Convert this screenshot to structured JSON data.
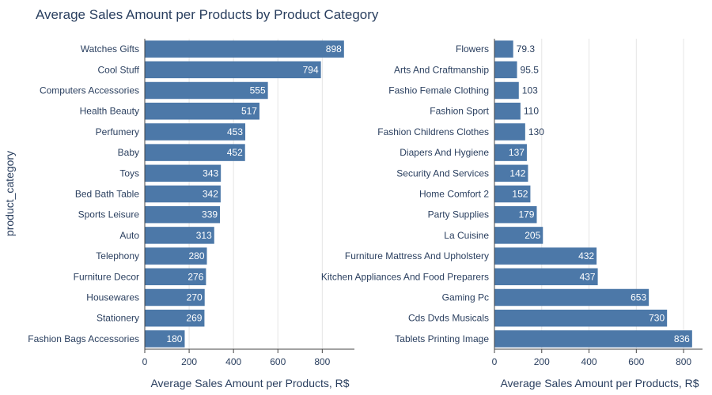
{
  "title": "Average Sales Amount per Products by Product Category",
  "colors": {
    "bar": "#4c78a8",
    "grid": "#e5e5e5",
    "axis": "#444444",
    "text": "#2a3f5f"
  },
  "chart_data": [
    {
      "type": "bar",
      "orientation": "horizontal",
      "categories": [
        "Watches Gifts",
        "Cool Stuff",
        "Computers Accessories",
        "Health Beauty",
        "Perfumery",
        "Baby",
        "Toys",
        "Bed Bath Table",
        "Sports Leisure",
        "Auto",
        "Telephony",
        "Furniture Decor",
        "Housewares",
        "Stationery",
        "Fashion Bags Accessories"
      ],
      "values": [
        898,
        794,
        555,
        517,
        453,
        452,
        343,
        342,
        339,
        313,
        280,
        276,
        270,
        269,
        180
      ],
      "labels": [
        "898",
        "794",
        "555",
        "517",
        "453",
        "452",
        "343",
        "342",
        "339",
        "313",
        "280",
        "276",
        "270",
        "269",
        "180"
      ],
      "xlabel": "Average Sales Amount per Products, R$",
      "ylabel": "product_category",
      "xlim": [
        0,
        945
      ],
      "xticks": [
        "0",
        "200",
        "400",
        "600",
        "800"
      ],
      "grid": true
    },
    {
      "type": "bar",
      "orientation": "horizontal",
      "categories": [
        "Flowers",
        "Arts And Craftmanship",
        "Fashio Female Clothing",
        "Fashion Sport",
        "Fashion Childrens Clothes",
        "Diapers And Hygiene",
        "Security And Services",
        "Home Comfort 2",
        "Party Supplies",
        "La Cuisine",
        "Furniture Mattress And Upholstery",
        "Kitchen Appliances And Food Preparers",
        "Gaming Pc",
        "Cds Dvds Musicals",
        "Tablets Printing Image"
      ],
      "values": [
        79.3,
        95.5,
        103,
        110,
        130,
        137,
        142,
        152,
        179,
        205,
        432,
        437,
        653,
        730,
        836
      ],
      "labels": [
        "79.3",
        "95.5",
        "103",
        "110",
        "130",
        "137",
        "142",
        "152",
        "179",
        "205",
        "432",
        "437",
        "653",
        "730",
        "836"
      ],
      "xlabel": "Average Sales Amount per Products, R$",
      "ylabel": "",
      "xlim": [
        0,
        880
      ],
      "xticks": [
        "0",
        "200",
        "400",
        "600",
        "800"
      ],
      "grid": true
    }
  ]
}
